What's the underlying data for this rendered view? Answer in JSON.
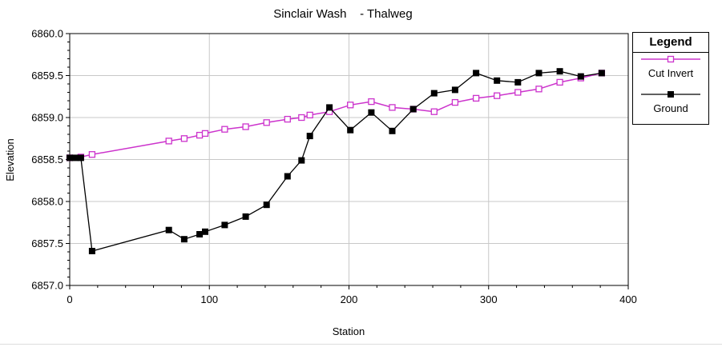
{
  "chart_data": {
    "type": "line",
    "title": "Sinclair Wash    - Thalweg",
    "xlabel": "Station",
    "ylabel": "Elevation",
    "xlim": [
      0,
      400
    ],
    "ylim": [
      6857.0,
      6860.0
    ],
    "xticks": [
      "0",
      "100",
      "200",
      "300",
      "400"
    ],
    "yticks": [
      "6857.0",
      "6857.5",
      "6858.0",
      "6858.5",
      "6859.0",
      "6859.5",
      "6860.0"
    ],
    "grid": true,
    "legend_position": "right",
    "legend_title": "Legend",
    "series": [
      {
        "name": "Cut Invert",
        "color": "#cc33cc",
        "marker": "open-square",
        "x": [
          0,
          8,
          16,
          71,
          82,
          93,
          97,
          111,
          126,
          141,
          156,
          166,
          172,
          186,
          201,
          216,
          231,
          246,
          261,
          276,
          291,
          306,
          321,
          336,
          351,
          366,
          381
        ],
        "y": [
          6858.52,
          6858.53,
          6858.56,
          6858.72,
          6858.75,
          6858.79,
          6858.81,
          6858.86,
          6858.89,
          6858.94,
          6858.98,
          6859.0,
          6859.03,
          6859.07,
          6859.15,
          6859.19,
          6859.12,
          6859.1,
          6859.07,
          6859.18,
          6859.23,
          6859.26,
          6859.3,
          6859.34,
          6859.42,
          6859.47,
          6859.53
        ]
      },
      {
        "name": "Ground",
        "color": "#000000",
        "marker": "filled-square",
        "x": [
          0,
          4,
          8,
          16,
          71,
          82,
          93,
          97,
          111,
          126,
          141,
          156,
          166,
          172,
          186,
          201,
          216,
          231,
          246,
          261,
          276,
          291,
          306,
          321,
          336,
          351,
          366,
          381
        ],
        "y": [
          6858.52,
          6858.52,
          6858.52,
          6857.41,
          6857.66,
          6857.55,
          6857.61,
          6857.64,
          6857.72,
          6857.82,
          6857.96,
          6858.3,
          6858.49,
          6858.78,
          6859.12,
          6858.85,
          6859.06,
          6858.84,
          6859.1,
          6859.29,
          6859.33,
          6859.53,
          6859.44,
          6859.42,
          6859.53,
          6859.55,
          6859.49,
          6859.53
        ]
      }
    ]
  }
}
